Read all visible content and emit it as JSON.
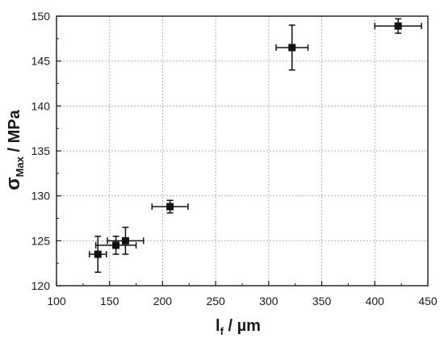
{
  "chart_data": {
    "type": "scatter",
    "x_title": {
      "main": "l",
      "sub": "f",
      "rest": " / µm"
    },
    "y_title": {
      "main": "σ",
      "sub": "Max",
      "rest": " / MPa"
    },
    "xlim": [
      100,
      450
    ],
    "ylim": [
      120,
      150
    ],
    "x_ticks": [
      100,
      150,
      200,
      250,
      300,
      350,
      400,
      450
    ],
    "y_ticks": [
      120,
      125,
      130,
      135,
      140,
      145,
      150
    ],
    "grid": true,
    "grid_style": "dotted",
    "marker": "square",
    "colors": {
      "marker": "#111111",
      "axis": "#1a1a1a",
      "grid": "#b0b0b0",
      "background": "#ffffff"
    },
    "points": [
      {
        "x": 139,
        "y": 123.5,
        "xerr": 8,
        "yerr": 2.0
      },
      {
        "x": 156,
        "y": 124.5,
        "xerr": 19,
        "yerr": 1.0
      },
      {
        "x": 165,
        "y": 125.0,
        "xerr": 17,
        "yerr": 1.5
      },
      {
        "x": 207,
        "y": 128.8,
        "xerr": 17,
        "yerr": 0.7
      },
      {
        "x": 322,
        "y": 146.5,
        "xerr": 15,
        "yerr": 2.5
      },
      {
        "x": 422,
        "y": 148.9,
        "xerr": 22,
        "yerr": 0.8
      }
    ]
  }
}
